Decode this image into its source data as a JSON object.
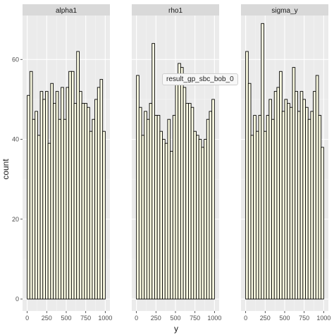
{
  "chart_data": {
    "type": "bar",
    "xlabel": "y",
    "ylabel": "count",
    "xlim": [
      -60,
      1060
    ],
    "ylim": [
      -3,
      71
    ],
    "x_ticks": [
      0,
      250,
      500,
      750,
      1000
    ],
    "x_tick_labels": [
      "0",
      "250",
      "500",
      "750",
      "1000"
    ],
    "y_ticks": [
      0,
      20,
      40,
      60
    ],
    "y_tick_labels": [
      "0",
      "20",
      "40",
      "60"
    ],
    "grid": true,
    "bin_starts": [
      0,
      33.33,
      66.67,
      100,
      133.33,
      166.67,
      200,
      233.33,
      266.67,
      300,
      333.33,
      366.67,
      400,
      433.33,
      466.67,
      500,
      533.33,
      566.67,
      600,
      633.33,
      666.67,
      700,
      733.33,
      766.67,
      800,
      833.33,
      866.67,
      900,
      933.33,
      966.67
    ],
    "bin_width": 33.33,
    "panels": [
      {
        "name": "alpha1",
        "values": [
          51,
          57,
          45,
          47,
          41,
          52,
          50,
          52,
          39,
          54,
          49,
          52,
          45,
          53,
          45,
          53,
          57,
          57,
          49,
          62,
          52,
          49,
          49,
          48,
          42,
          45,
          50,
          53,
          55,
          42
        ]
      },
      {
        "name": "rho1",
        "values": [
          56,
          48,
          41,
          47,
          45,
          49,
          64,
          46,
          46,
          42,
          40,
          39,
          45,
          37,
          46,
          55,
          59,
          58,
          53,
          49,
          49,
          48,
          42,
          41,
          40,
          38,
          40,
          45,
          47,
          50
        ]
      },
      {
        "name": "sigma_y",
        "values": [
          62,
          54,
          41,
          46,
          42,
          46,
          69,
          42,
          46,
          50,
          45,
          52,
          53,
          57,
          47,
          50,
          49,
          48,
          58,
          52,
          47,
          52,
          50,
          48,
          45,
          47,
          52,
          56,
          46,
          38
        ]
      }
    ]
  },
  "tooltip": {
    "text": "result_gp_sbc_bob_0"
  },
  "colors": {
    "panel_background": "#ebebeb",
    "strip_background": "#d9d9d9",
    "grid_major": "#ffffff",
    "bar_fill": "#ffffe6",
    "bar_stroke": "#000000",
    "text": "#1a1a1a",
    "tick_text": "#4d4d4d"
  }
}
